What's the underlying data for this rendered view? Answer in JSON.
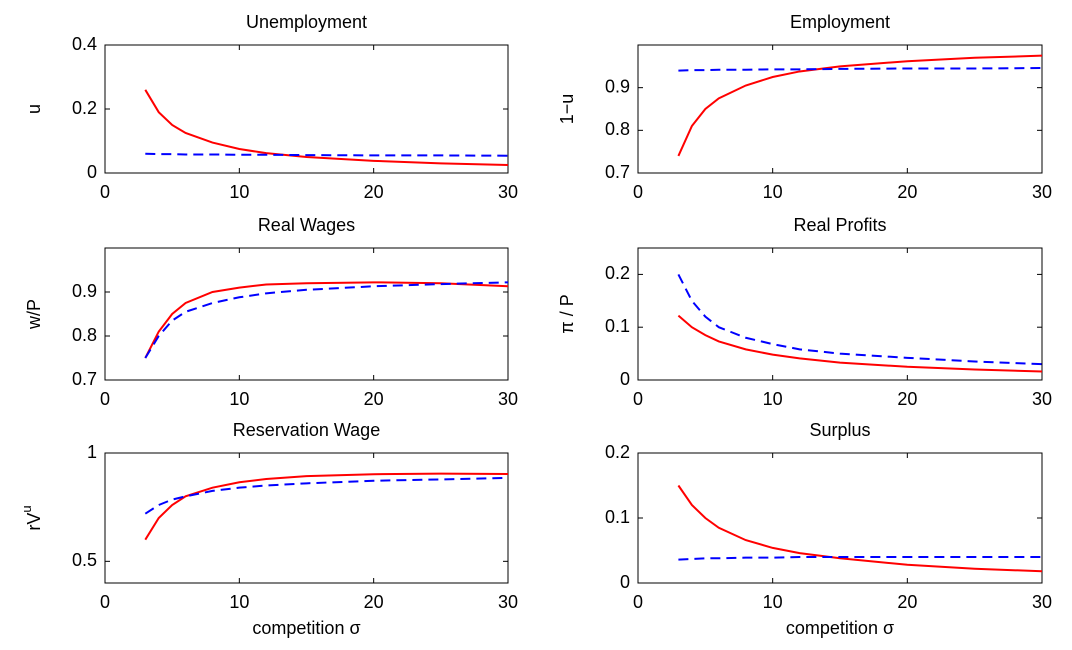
{
  "chart_data": [
    {
      "type": "line",
      "title": "Unemployment",
      "ylabel": "u",
      "x": [
        3,
        4,
        5,
        6,
        8,
        10,
        12,
        15,
        20,
        25,
        30
      ],
      "series": [
        {
          "color": "#ff0000",
          "dash": "solid",
          "values": [
            0.26,
            0.19,
            0.15,
            0.125,
            0.095,
            0.075,
            0.062,
            0.05,
            0.038,
            0.03,
            0.025
          ]
        },
        {
          "color": "#0000ff",
          "dash": "dashed",
          "values": [
            0.06,
            0.059,
            0.059,
            0.058,
            0.058,
            0.057,
            0.057,
            0.056,
            0.055,
            0.055,
            0.054
          ]
        }
      ],
      "xlim": [
        0,
        30
      ],
      "xticks": [
        0,
        10,
        20,
        30
      ],
      "ylim": [
        0,
        0.4
      ],
      "yticks": [
        0,
        0.2,
        0.4
      ]
    },
    {
      "type": "line",
      "title": "Employment",
      "ylabel": "1−u",
      "x": [
        3,
        4,
        5,
        6,
        8,
        10,
        12,
        15,
        20,
        25,
        30
      ],
      "series": [
        {
          "color": "#ff0000",
          "dash": "solid",
          "values": [
            0.74,
            0.81,
            0.85,
            0.875,
            0.905,
            0.925,
            0.938,
            0.95,
            0.962,
            0.97,
            0.975
          ]
        },
        {
          "color": "#0000ff",
          "dash": "dashed",
          "values": [
            0.94,
            0.941,
            0.941,
            0.942,
            0.942,
            0.943,
            0.943,
            0.944,
            0.945,
            0.945,
            0.946
          ]
        }
      ],
      "xlim": [
        0,
        30
      ],
      "xticks": [
        0,
        10,
        20,
        30
      ],
      "ylim": [
        0.7,
        1.0
      ],
      "yticks": [
        0.7,
        0.8,
        0.9
      ]
    },
    {
      "type": "line",
      "title": "Real Wages",
      "ylabel": "w/P",
      "x": [
        3,
        4,
        5,
        6,
        8,
        10,
        12,
        15,
        20,
        25,
        30
      ],
      "series": [
        {
          "color": "#ff0000",
          "dash": "solid",
          "values": [
            0.75,
            0.81,
            0.85,
            0.875,
            0.9,
            0.91,
            0.917,
            0.92,
            0.922,
            0.92,
            0.913
          ]
        },
        {
          "color": "#0000ff",
          "dash": "dashed",
          "values": [
            0.75,
            0.8,
            0.835,
            0.855,
            0.875,
            0.888,
            0.897,
            0.905,
            0.913,
            0.918,
            0.922
          ]
        }
      ],
      "xlim": [
        0,
        30
      ],
      "xticks": [
        0,
        10,
        20,
        30
      ],
      "ylim": [
        0.7,
        1.0
      ],
      "yticks": [
        0.7,
        0.8,
        0.9
      ]
    },
    {
      "type": "line",
      "title": "Real Profits",
      "ylabel": "π / P",
      "x": [
        3,
        4,
        5,
        6,
        8,
        10,
        12,
        15,
        20,
        25,
        30
      ],
      "series": [
        {
          "color": "#ff0000",
          "dash": "solid",
          "values": [
            0.122,
            0.1,
            0.085,
            0.073,
            0.058,
            0.048,
            0.041,
            0.033,
            0.025,
            0.02,
            0.016
          ]
        },
        {
          "color": "#0000ff",
          "dash": "dashed",
          "values": [
            0.2,
            0.15,
            0.12,
            0.1,
            0.08,
            0.068,
            0.058,
            0.05,
            0.042,
            0.035,
            0.03
          ]
        }
      ],
      "xlim": [
        0,
        30
      ],
      "xticks": [
        0,
        10,
        20,
        30
      ],
      "ylim": [
        0,
        0.25
      ],
      "yticks": [
        0,
        0.1,
        0.2
      ]
    },
    {
      "type": "line",
      "title": "Reservation Wage",
      "ylabel": "rV",
      "ylabel_sup": "u",
      "xlabel": "competition σ",
      "x": [
        3,
        4,
        5,
        6,
        8,
        10,
        12,
        15,
        20,
        25,
        30
      ],
      "series": [
        {
          "color": "#ff0000",
          "dash": "solid",
          "values": [
            0.6,
            0.7,
            0.76,
            0.8,
            0.84,
            0.865,
            0.88,
            0.893,
            0.902,
            0.905,
            0.903
          ]
        },
        {
          "color": "#0000ff",
          "dash": "dashed",
          "values": [
            0.72,
            0.76,
            0.785,
            0.8,
            0.825,
            0.84,
            0.85,
            0.86,
            0.872,
            0.878,
            0.885
          ]
        }
      ],
      "xlim": [
        0,
        30
      ],
      "xticks": [
        0,
        10,
        20,
        30
      ],
      "ylim": [
        0.4,
        1
      ],
      "yticks": [
        0.5,
        1
      ]
    },
    {
      "type": "line",
      "title": "Surplus",
      "xlabel": "competition σ",
      "x": [
        3,
        4,
        5,
        6,
        8,
        10,
        12,
        15,
        20,
        25,
        30
      ],
      "series": [
        {
          "color": "#ff0000",
          "dash": "solid",
          "values": [
            0.15,
            0.12,
            0.1,
            0.085,
            0.066,
            0.054,
            0.046,
            0.038,
            0.028,
            0.022,
            0.018
          ]
        },
        {
          "color": "#0000ff",
          "dash": "dashed",
          "values": [
            0.036,
            0.037,
            0.038,
            0.038,
            0.039,
            0.039,
            0.04,
            0.04,
            0.04,
            0.04,
            0.04
          ]
        }
      ],
      "xlim": [
        0,
        30
      ],
      "xticks": [
        0,
        10,
        20,
        30
      ],
      "ylim": [
        0,
        0.2
      ],
      "yticks": [
        0,
        0.1,
        0.2
      ]
    }
  ]
}
